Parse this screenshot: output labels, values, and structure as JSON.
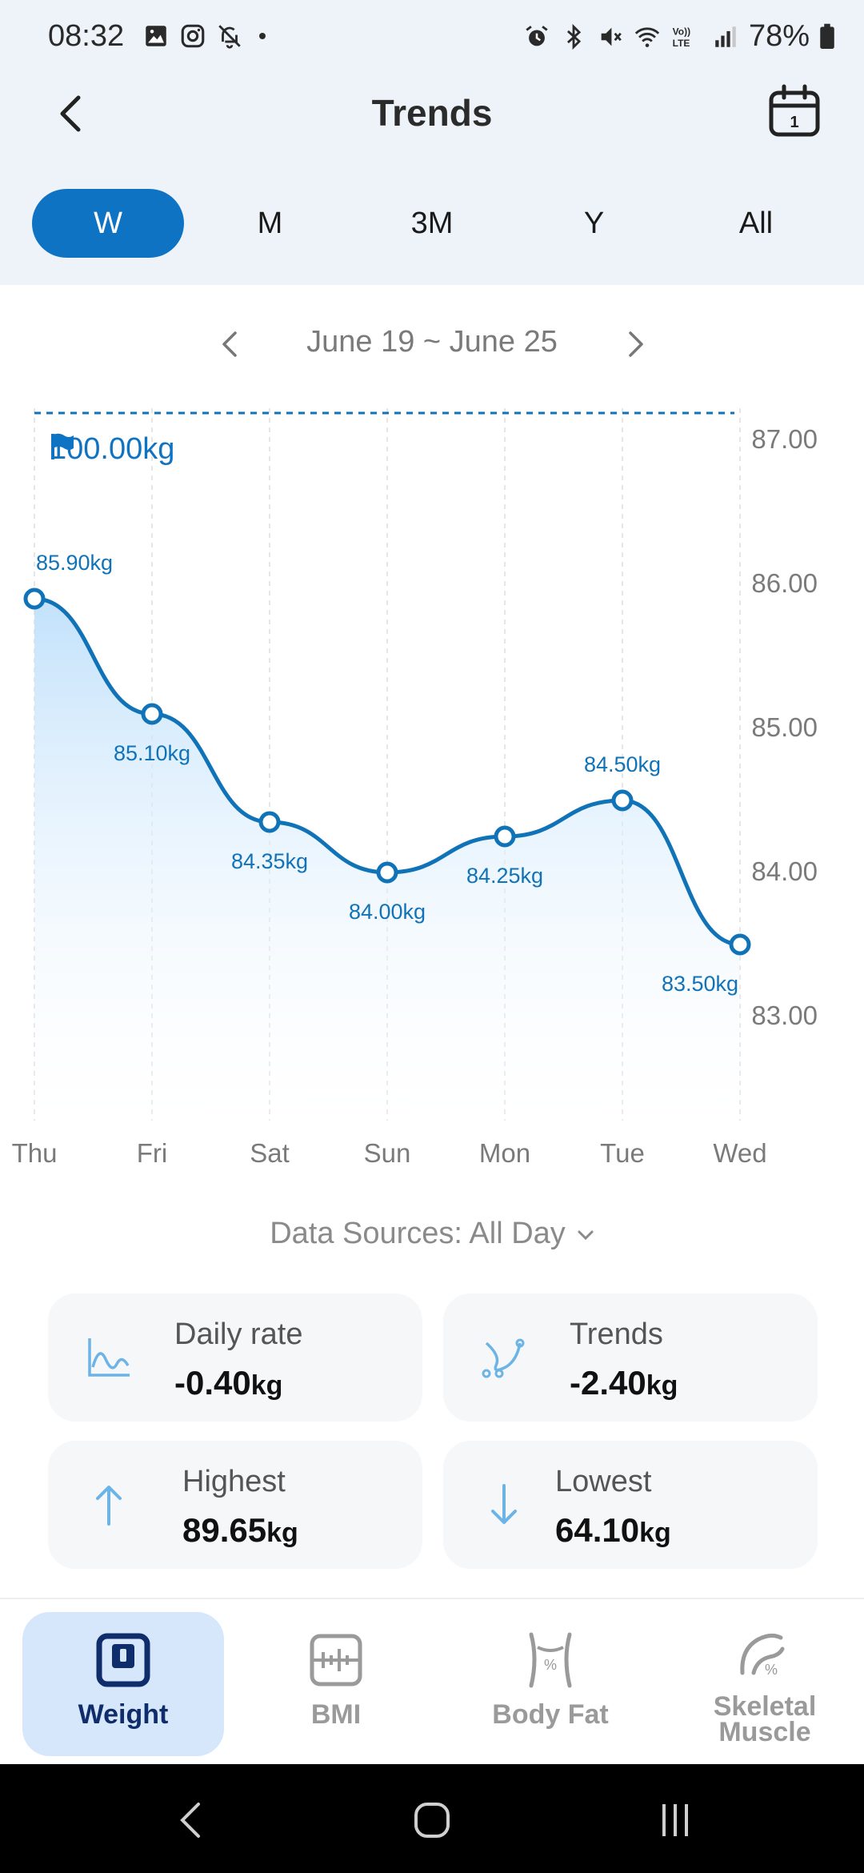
{
  "status_bar": {
    "time": "08:32",
    "battery": "78%",
    "left_icons": [
      "gallery-icon",
      "instagram-icon",
      "notifications-off-icon",
      "dot-icon"
    ],
    "right_icons": [
      "alarm-icon",
      "bluetooth-icon",
      "mute-icon",
      "wifi-icon",
      "volte-icon",
      "signal-icon",
      "battery-icon"
    ]
  },
  "header": {
    "title": "Trends"
  },
  "period_tabs": [
    {
      "label": "W",
      "active": true
    },
    {
      "label": "M",
      "active": false
    },
    {
      "label": "3M",
      "active": false
    },
    {
      "label": "Y",
      "active": false
    },
    {
      "label": "All",
      "active": false
    }
  ],
  "date_range": "June 19 ~ June 25",
  "goal": "100.00kg",
  "chart_data": {
    "type": "line",
    "categories": [
      "Thu",
      "Fri",
      "Sat",
      "Sun",
      "Mon",
      "Tue",
      "Wed"
    ],
    "values": [
      85.9,
      85.1,
      84.35,
      84.0,
      84.25,
      84.5,
      83.5
    ],
    "data_labels": [
      "85.90kg",
      "85.10kg",
      "84.35kg",
      "84.00kg",
      "84.25kg",
      "84.50kg",
      "83.50kg"
    ],
    "y_ticks": [
      "87.00",
      "86.00",
      "85.00",
      "84.00",
      "83.00"
    ],
    "y_tick_values": [
      87,
      86,
      85,
      84,
      83
    ],
    "ylim": [
      82.4,
      87.2
    ],
    "y_axis_side": "right",
    "color": "#1173b7",
    "goal_line": true
  },
  "data_sources": {
    "label": "Data Sources: All Day"
  },
  "stats": [
    {
      "label": "Daily rate",
      "value": "-0.40",
      "unit": "kg",
      "icon": "line-chart-icon"
    },
    {
      "label": "Trends",
      "value": "-2.40",
      "unit": "kg",
      "icon": "trend-curve-icon"
    },
    {
      "label": "Highest",
      "value": "89.65",
      "unit": "kg",
      "icon": "arrow-up-icon"
    },
    {
      "label": "Lowest",
      "value": "64.10",
      "unit": "kg",
      "icon": "arrow-down-icon"
    }
  ],
  "bottom_nav": [
    {
      "label": "Weight",
      "active": true,
      "icon": "scale-icon"
    },
    {
      "label": "BMI",
      "active": false,
      "icon": "bmi-icon"
    },
    {
      "label": "Body Fat",
      "active": false,
      "icon": "body-fat-icon"
    },
    {
      "label": "Skeletal Muscle",
      "active": false,
      "icon": "muscle-icon"
    }
  ],
  "colors": {
    "accent": "#0f73c4",
    "header_bg": "#edf3f9",
    "card_bg": "#f5f7f9",
    "active_nav_bg": "#d6e6fb"
  }
}
